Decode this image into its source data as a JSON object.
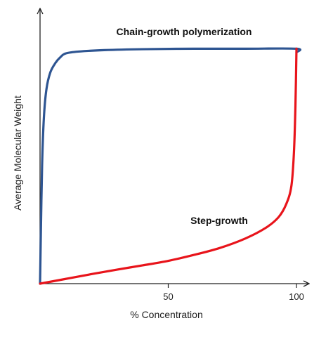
{
  "chart_data": {
    "type": "line",
    "title": "",
    "xlabel": "% Concentration",
    "ylabel": "Average Molecular Weight",
    "xlim": [
      0,
      100
    ],
    "ylim": [
      0,
      100
    ],
    "x_ticks": [
      50,
      100
    ],
    "y_ticks": [],
    "grid": false,
    "legend": "none",
    "series": [
      {
        "name": "Chain-growth polymerization",
        "color": "#2e5592",
        "points": [
          [
            0,
            0
          ],
          [
            0.3,
            20
          ],
          [
            0.8,
            50
          ],
          [
            1.5,
            70
          ],
          [
            2.5,
            82
          ],
          [
            4,
            89
          ],
          [
            6,
            93
          ],
          [
            8,
            95.5
          ],
          [
            10,
            97
          ],
          [
            15,
            97.8
          ],
          [
            25,
            98.4
          ],
          [
            40,
            98.8
          ],
          [
            60,
            99
          ],
          [
            80,
            99
          ],
          [
            100,
            99
          ],
          [
            100,
            97.5
          ]
        ]
      },
      {
        "name": "Step-growth",
        "color": "#e8141b",
        "points": [
          [
            0,
            0
          ],
          [
            10,
            2
          ],
          [
            20,
            4
          ],
          [
            30,
            5.9
          ],
          [
            40,
            7.7
          ],
          [
            50,
            9.6
          ],
          [
            60,
            12.1
          ],
          [
            70,
            15
          ],
          [
            80,
            19
          ],
          [
            88,
            23.5
          ],
          [
            93,
            28
          ],
          [
            96,
            33.5
          ],
          [
            98,
            41
          ],
          [
            99,
            55
          ],
          [
            99.6,
            75
          ],
          [
            100,
            99
          ]
        ]
      }
    ]
  }
}
